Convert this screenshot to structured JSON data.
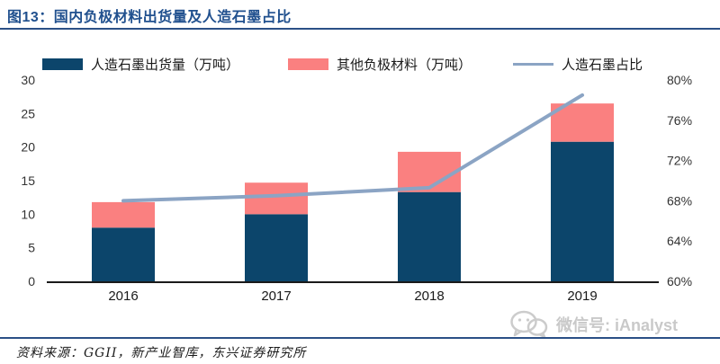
{
  "header": {
    "title": "图13：国内负极材料出货量及人造石墨占比"
  },
  "legend": [
    {
      "label": "人造石墨出货量（万吨）",
      "type": "bar",
      "color": "#0c456b"
    },
    {
      "label": "其他负极材料（万吨）",
      "type": "bar",
      "color": "#fa8080"
    },
    {
      "label": "人造石墨占比",
      "type": "line",
      "color": "#8ba4c4"
    }
  ],
  "chart_data": {
    "type": "combo",
    "categories": [
      "2016",
      "2017",
      "2018",
      "2019"
    ],
    "series": [
      {
        "name": "人造石墨出货量（万吨）",
        "type": "bar",
        "stack": true,
        "axis": "left",
        "color": "#0c456b",
        "values": [
          8.0,
          10.0,
          13.3,
          20.8
        ]
      },
      {
        "name": "其他负极材料（万吨）",
        "type": "bar",
        "stack": true,
        "axis": "left",
        "color": "#fa8080",
        "values": [
          3.8,
          4.7,
          6.0,
          5.7
        ]
      },
      {
        "name": "人造石墨占比",
        "type": "line",
        "axis": "right",
        "color": "#8ba4c4",
        "values": [
          68.0,
          68.5,
          69.3,
          78.5
        ]
      }
    ],
    "stacked_totals": [
      11.8,
      14.7,
      19.3,
      26.5
    ],
    "left_axis": {
      "min": 0,
      "max": 30,
      "step": 5,
      "ticks": [
        "0",
        "5",
        "10",
        "15",
        "20",
        "25",
        "30"
      ]
    },
    "right_axis": {
      "min": 60,
      "max": 80,
      "step": 4,
      "ticks": [
        "60%",
        "64%",
        "68%",
        "72%",
        "76%",
        "80%"
      ]
    },
    "grid": false,
    "legend_position": "top",
    "title": "图13：国内负极材料出货量及人造石墨占比"
  },
  "colors": {
    "title": "#20508e",
    "rule": "#2b5086",
    "axis_line": "#1a1a1a",
    "tick_text": "#333333",
    "watermark": "#c9c9c9"
  },
  "footer": {
    "source": "资料来源：GGII，新产业智库，东兴证券研究所"
  },
  "watermark": {
    "text": "微信号: iAnalyst"
  }
}
